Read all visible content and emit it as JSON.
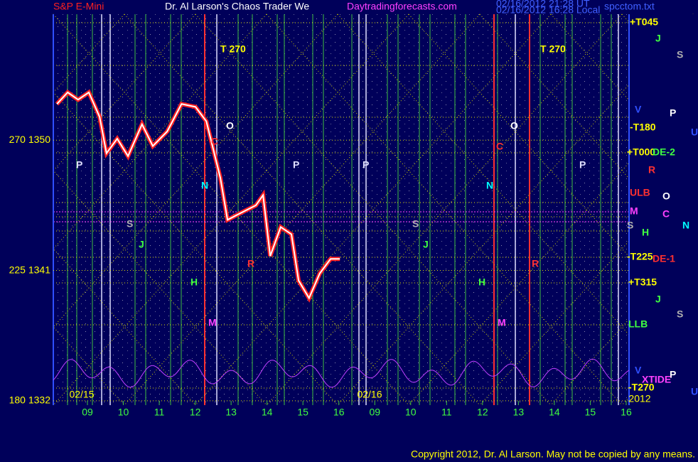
{
  "header": {
    "left": "S&P E-Mini",
    "center": "Dr. Al Larson's Chaos Trader We",
    "site": "Daytradingforecasts.com",
    "stamp1": "02/16/2012 21:28 UT",
    "stamp2": "02/16/2012 16:28 Local",
    "file": "spcctom.txt"
  },
  "footer": "Copyright 2012, Dr. Al Larson. May not be copied by any means.",
  "chart_data": {
    "type": "line",
    "color": "#ffffff",
    "x": [
      0.15,
      0.45,
      0.74,
      1.04,
      1.34,
      1.53,
      1.83,
      2.13,
      2.52,
      2.82,
      3.22,
      3.62,
      4.01,
      4.31,
      4.5,
      4.7,
      4.9,
      5.29,
      5.69,
      5.89,
      6.09,
      6.38,
      6.68,
      6.88,
      7.17,
      7.47,
      7.77,
      8.03
    ],
    "values": [
      1352.5,
      1353.3,
      1352.8,
      1353.3,
      1351.6,
      1349.1,
      1350.1,
      1348.9,
      1351.1,
      1349.6,
      1350.6,
      1352.5,
      1352.3,
      1351.3,
      1349.4,
      1347.4,
      1344.5,
      1345.0,
      1345.5,
      1346.2,
      1342.0,
      1344.0,
      1343.5,
      1340.3,
      1339.1,
      1340.8,
      1341.8,
      1341.8
    ],
    "xlim": [
      0.05,
      16.08
    ],
    "ylim": [
      1331.7,
      1358.7
    ],
    "yticks": [
      {
        "value": 1332,
        "label": "180 1332"
      },
      {
        "value": 1341,
        "label": "225 1341"
      },
      {
        "value": 1350,
        "label": "270 1350"
      }
    ],
    "xticks": [
      {
        "value": 1,
        "label": "09"
      },
      {
        "value": 2,
        "label": "10"
      },
      {
        "value": 3,
        "label": "11"
      },
      {
        "value": 4,
        "label": "12"
      },
      {
        "value": 5,
        "label": "13"
      },
      {
        "value": 6,
        "label": "14"
      },
      {
        "value": 7,
        "label": "15"
      },
      {
        "value": 8,
        "label": "16"
      },
      {
        "value": 9,
        "label": "09"
      },
      {
        "value": 10,
        "label": "10"
      },
      {
        "value": 11,
        "label": "11"
      },
      {
        "value": 12,
        "label": "12"
      },
      {
        "value": 13,
        "label": "13"
      },
      {
        "value": 14,
        "label": "14"
      },
      {
        "value": 15,
        "label": "15"
      },
      {
        "value": 16,
        "label": "16"
      }
    ],
    "date_labels": [
      "02/15",
      "02/16",
      "2012"
    ],
    "annotations": [
      "T  270",
      "T  270",
      "P",
      "P",
      "P",
      "P",
      "O",
      "O",
      "S",
      "S",
      "N",
      "N",
      "J",
      "J",
      "H",
      "H",
      "R",
      "R",
      "M",
      "M",
      "C",
      "C"
    ],
    "right_labels": [
      "+T045",
      "J",
      "S",
      "P",
      "V",
      "-T180",
      "U",
      "+T000",
      "DE-2",
      "R",
      "ULB",
      "O",
      "M",
      "C",
      "S",
      "N",
      "H",
      "-T225",
      "DE-1",
      "+T315",
      "J",
      "S",
      "LLB",
      "V",
      "P",
      "XTIDE",
      "-T270",
      "U"
    ]
  }
}
